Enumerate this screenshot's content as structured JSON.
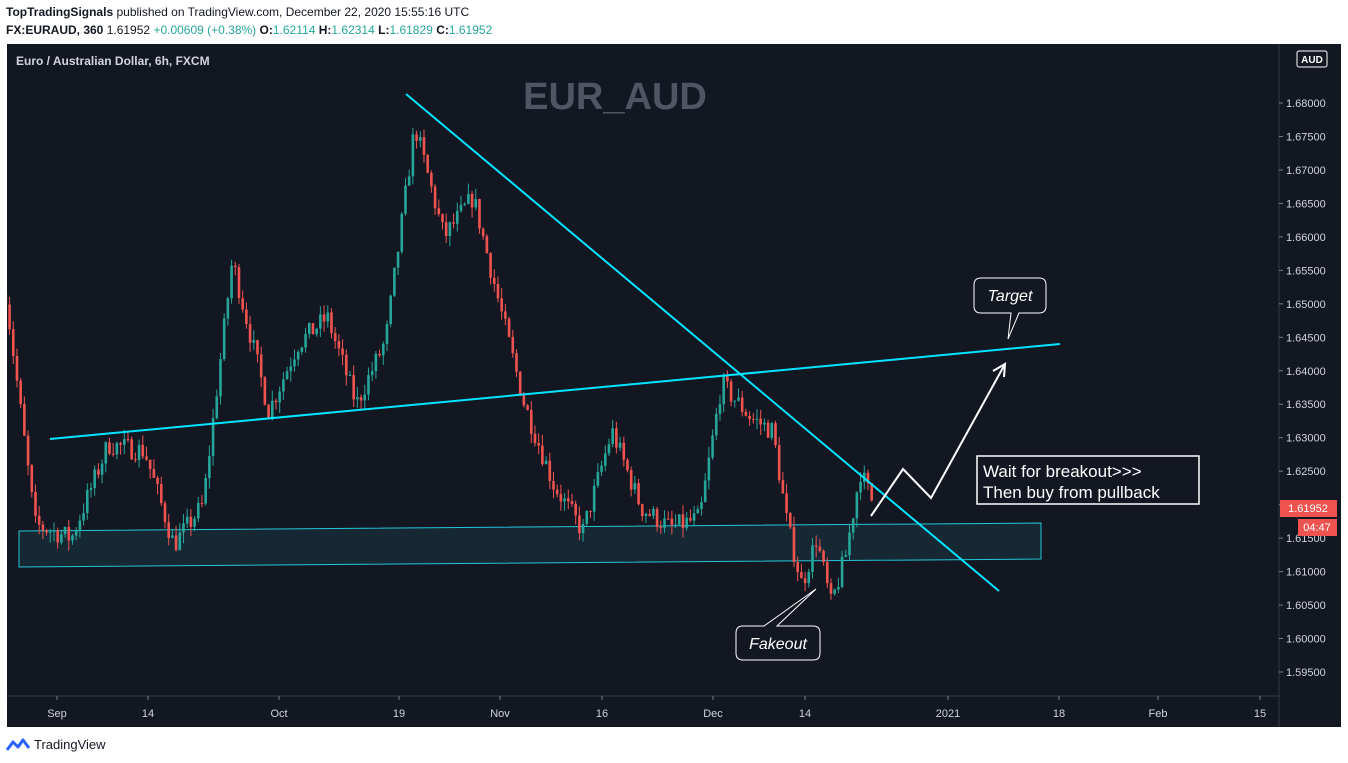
{
  "header": {
    "author": "TopTradingSignals",
    "published": "published on TradingView.com, December 22, 2020 15:55:16 UTC",
    "symbol": "FX:EURAUD, 360",
    "price": "1.61952",
    "change": "+0.00609 (+0.38%)",
    "o_label": "O:",
    "o_value": "1.62114",
    "h_label": "H:",
    "h_value": "1.62314",
    "l_label": "L:",
    "l_value": "1.61829",
    "c_label": "C:",
    "c_value": "1.61952"
  },
  "chart": {
    "instrument_title": "Euro / Australian Dollar, 6h, FXCM",
    "watermark": "EUR_AUD",
    "currency_badge": "AUD",
    "last_price_tag": "1.61952",
    "countdown_tag": "04:47",
    "annotations": {
      "target": "Target",
      "fakeout": "Fakeout",
      "plan_line1": "Wait for breakout>>>",
      "plan_line2": "Then buy from pullback"
    }
  },
  "footer": {
    "brand": "TradingView"
  },
  "colors": {
    "background": "#131722",
    "up": "#26a69a",
    "down": "#ef5350",
    "trendline": "#00e5ff",
    "zone_border": "#26c6da",
    "text": "#d1d4dc"
  },
  "chart_data": {
    "type": "candlestick",
    "title": "Euro / Australian Dollar, 6h, FXCM",
    "y_axis": {
      "range": [
        1.5925,
        1.6875
      ],
      "ticks": [
        "1.68000",
        "1.67500",
        "1.67000",
        "1.66500",
        "1.66000",
        "1.65500",
        "1.65000",
        "1.64500",
        "1.64000",
        "1.63500",
        "1.63000",
        "1.62500",
        "1.62000",
        "1.61500",
        "1.61000",
        "1.60500",
        "1.60000",
        "1.59500"
      ]
    },
    "x_axis": {
      "ticks": [
        "Sep",
        "14",
        "Oct",
        "19",
        "Nov",
        "16",
        "Dec",
        "14",
        "2021",
        "18",
        "Feb",
        "15"
      ]
    },
    "series": [
      {
        "name": "EURAUD 6h",
        "close_path": [
          {
            "date": "2020-08-25",
            "value": 1.6515
          },
          {
            "date": "2020-08-29",
            "value": 1.617
          },
          {
            "date": "2020-09-03",
            "value": 1.615
          },
          {
            "date": "2020-09-08",
            "value": 1.629
          },
          {
            "date": "2020-09-13",
            "value": 1.628
          },
          {
            "date": "2020-09-17",
            "value": 1.614
          },
          {
            "date": "2020-09-21",
            "value": 1.62
          },
          {
            "date": "2020-09-25",
            "value": 1.6565
          },
          {
            "date": "2020-09-30",
            "value": 1.634
          },
          {
            "date": "2020-10-04",
            "value": 1.644
          },
          {
            "date": "2020-10-08",
            "value": 1.648
          },
          {
            "date": "2020-10-12",
            "value": 1.635
          },
          {
            "date": "2020-10-16",
            "value": 1.6445
          },
          {
            "date": "2020-10-20",
            "value": 1.6765
          },
          {
            "date": "2020-10-24",
            "value": 1.66
          },
          {
            "date": "2020-10-28",
            "value": 1.666
          },
          {
            "date": "2020-11-01",
            "value": 1.648
          },
          {
            "date": "2020-11-04",
            "value": 1.635
          },
          {
            "date": "2020-11-08",
            "value": 1.623
          },
          {
            "date": "2020-11-12",
            "value": 1.616
          },
          {
            "date": "2020-11-16",
            "value": 1.631
          },
          {
            "date": "2020-11-20",
            "value": 1.6195
          },
          {
            "date": "2020-11-24",
            "value": 1.6165
          },
          {
            "date": "2020-11-28",
            "value": 1.618
          },
          {
            "date": "2020-12-01",
            "value": 1.638
          },
          {
            "date": "2020-12-05",
            "value": 1.633
          },
          {
            "date": "2020-12-08",
            "value": 1.631
          },
          {
            "date": "2020-12-10",
            "value": 1.617
          },
          {
            "date": "2020-12-12",
            "value": 1.608
          },
          {
            "date": "2020-12-14",
            "value": 1.615
          },
          {
            "date": "2020-12-16",
            "value": 1.605
          },
          {
            "date": "2020-12-18",
            "value": 1.6125
          },
          {
            "date": "2020-12-20",
            "value": 1.625
          },
          {
            "date": "2020-12-22",
            "value": 1.6195
          }
        ]
      }
    ],
    "drawings": {
      "rising_trendline": [
        {
          "date": "2020-08-27",
          "value": 1.63
        },
        {
          "date": "2021-01-23",
          "value": 1.644
        }
      ],
      "falling_trendline": [
        {
          "date": "2020-10-19",
          "value": 1.681
        },
        {
          "date": "2021-01-09",
          "value": 1.607
        }
      ],
      "support_zone": {
        "top": 1.6175,
        "bottom": 1.611
      },
      "projection_path": [
        {
          "date": "2020-12-22",
          "value": 1.621
        },
        {
          "date": "2020-12-24",
          "value": 1.625
        },
        {
          "date": "2020-12-27",
          "value": 1.6205
        },
        {
          "date": "2021-01-03",
          "value": 1.641
        }
      ]
    }
  }
}
